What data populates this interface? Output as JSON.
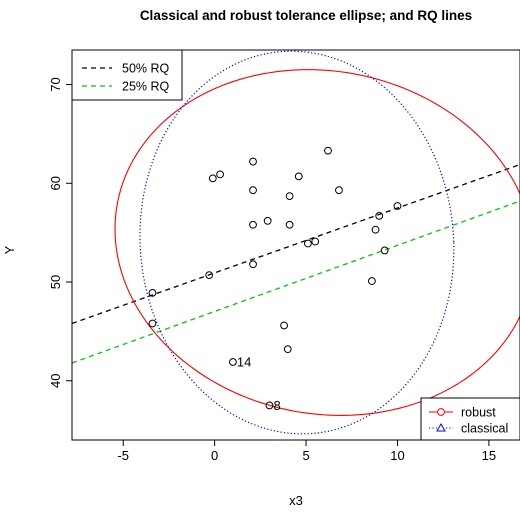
{
  "chart_data": {
    "type": "scatter",
    "title": "Classical and robust tolerance ellipse; and RQ lines",
    "xlabel": "x3",
    "ylabel": "Y",
    "xlim": [
      -7.8,
      16.7
    ],
    "ylim": [
      34.0,
      73.5
    ],
    "xticks": [
      -5,
      0,
      5,
      10,
      15
    ],
    "yticks": [
      40,
      50,
      60,
      70
    ],
    "grid": false,
    "points": [
      {
        "x": -3.4,
        "y": 48.9,
        "label": ""
      },
      {
        "x": -3.4,
        "y": 45.8,
        "label": ""
      },
      {
        "x": -0.3,
        "y": 50.7,
        "label": ""
      },
      {
        "x": -0.1,
        "y": 60.5,
        "label": ""
      },
      {
        "x": 0.3,
        "y": 60.9,
        "label": ""
      },
      {
        "x": 2.1,
        "y": 62.2,
        "label": ""
      },
      {
        "x": 2.1,
        "y": 59.3,
        "label": ""
      },
      {
        "x": 2.1,
        "y": 55.8,
        "label": ""
      },
      {
        "x": 2.1,
        "y": 51.8,
        "label": ""
      },
      {
        "x": 2.9,
        "y": 56.2,
        "label": ""
      },
      {
        "x": 4.1,
        "y": 58.7,
        "label": ""
      },
      {
        "x": 4.6,
        "y": 60.7,
        "label": ""
      },
      {
        "x": 4.1,
        "y": 55.8,
        "label": ""
      },
      {
        "x": 5.1,
        "y": 53.9,
        "label": ""
      },
      {
        "x": 5.5,
        "y": 54.1,
        "label": ""
      },
      {
        "x": 6.2,
        "y": 63.3,
        "label": ""
      },
      {
        "x": 6.8,
        "y": 59.3,
        "label": ""
      },
      {
        "x": 8.8,
        "y": 55.3,
        "label": ""
      },
      {
        "x": 9.0,
        "y": 56.7,
        "label": ""
      },
      {
        "x": 10.0,
        "y": 57.7,
        "label": ""
      },
      {
        "x": 9.3,
        "y": 53.2,
        "label": ""
      },
      {
        "x": 8.6,
        "y": 50.1,
        "label": ""
      },
      {
        "x": 3.8,
        "y": 45.6,
        "label": ""
      },
      {
        "x": 4.0,
        "y": 43.2,
        "label": ""
      },
      {
        "x": 1.0,
        "y": 41.9,
        "label": "14"
      },
      {
        "x": 3.0,
        "y": 37.5,
        "label": "8"
      }
    ],
    "lines": [
      {
        "name": "50% RQ",
        "color": "#000000",
        "x": [
          -7.8,
          16.7
        ],
        "y": [
          45.8,
          61.9
        ]
      },
      {
        "name": "25% RQ",
        "color": "#00cc00",
        "x": [
          -7.8,
          16.7
        ],
        "y": [
          41.8,
          58.2
        ]
      }
    ],
    "ellipses": [
      {
        "name": "robust",
        "color": "#ff0000",
        "center": [
          6.0,
          54.0
        ],
        "points": [
          [
            3.7,
            72.0
          ],
          [
            6.0,
            36.1
          ],
          [
            -6.5,
            58.1
          ],
          [
            13.0,
            59.4
          ],
          [
            -5.0,
            48.0
          ],
          [
            12.5,
            46.0
          ]
        ]
      },
      {
        "name": "classical",
        "color": "#0000ff",
        "center": [
          4.5,
          54.0
        ],
        "points": [
          [
            5.5,
            73.0
          ],
          [
            2.0,
            35.5
          ],
          [
            -4.0,
            58.0
          ],
          [
            13.0,
            55.0
          ]
        ]
      }
    ],
    "legends": [
      {
        "position": "top-left",
        "entries": [
          {
            "text": "50% RQ",
            "color": "#000000",
            "style": "dashed"
          },
          {
            "text": "25% RQ",
            "color": "#00cc00",
            "style": "dashed"
          }
        ]
      },
      {
        "position": "bottom-right",
        "entries": [
          {
            "text": "robust",
            "color": "#ff0000",
            "style": "solid",
            "marker": "circle"
          },
          {
            "text": "classical",
            "color": "#0000ff",
            "style": "dotted",
            "marker": "triangle"
          }
        ]
      }
    ]
  }
}
